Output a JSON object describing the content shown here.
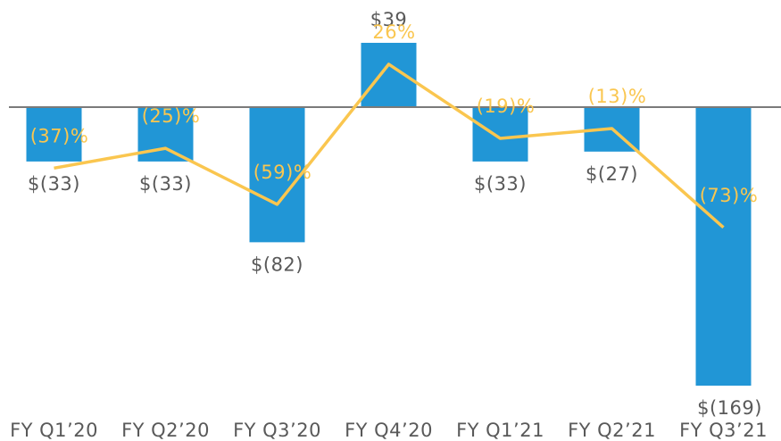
{
  "chart_data": {
    "type": "bar",
    "categories": [
      "FY Q1’20",
      "FY Q2’20",
      "FY Q3’20",
      "FY Q4’20",
      "FY Q1’21",
      "FY Q2’21",
      "FY Q3’21"
    ],
    "series": [
      {
        "color": "#2196d6",
        "values": [
          -33,
          -33,
          -82,
          39,
          -33,
          -27,
          -169
        ],
        "value_labels": [
          "$(33)",
          "$(33)",
          "$(82)",
          "$39",
          "$(33)",
          "$(27)",
          "$(169)"
        ]
      },
      {
        "type": "line",
        "axis": "y2",
        "color": "#fac64f",
        "values": [
          -37,
          -25,
          -59,
          26,
          -19,
          -13,
          -73
        ],
        "value_labels": [
          "(37)%",
          "(25)%",
          "(59)%",
          "26%",
          "(19)%",
          "(13)%",
          "(73)%"
        ]
      }
    ],
    "ylim": [
      -180,
      60
    ],
    "y2lim": [
      -180,
      60
    ]
  }
}
